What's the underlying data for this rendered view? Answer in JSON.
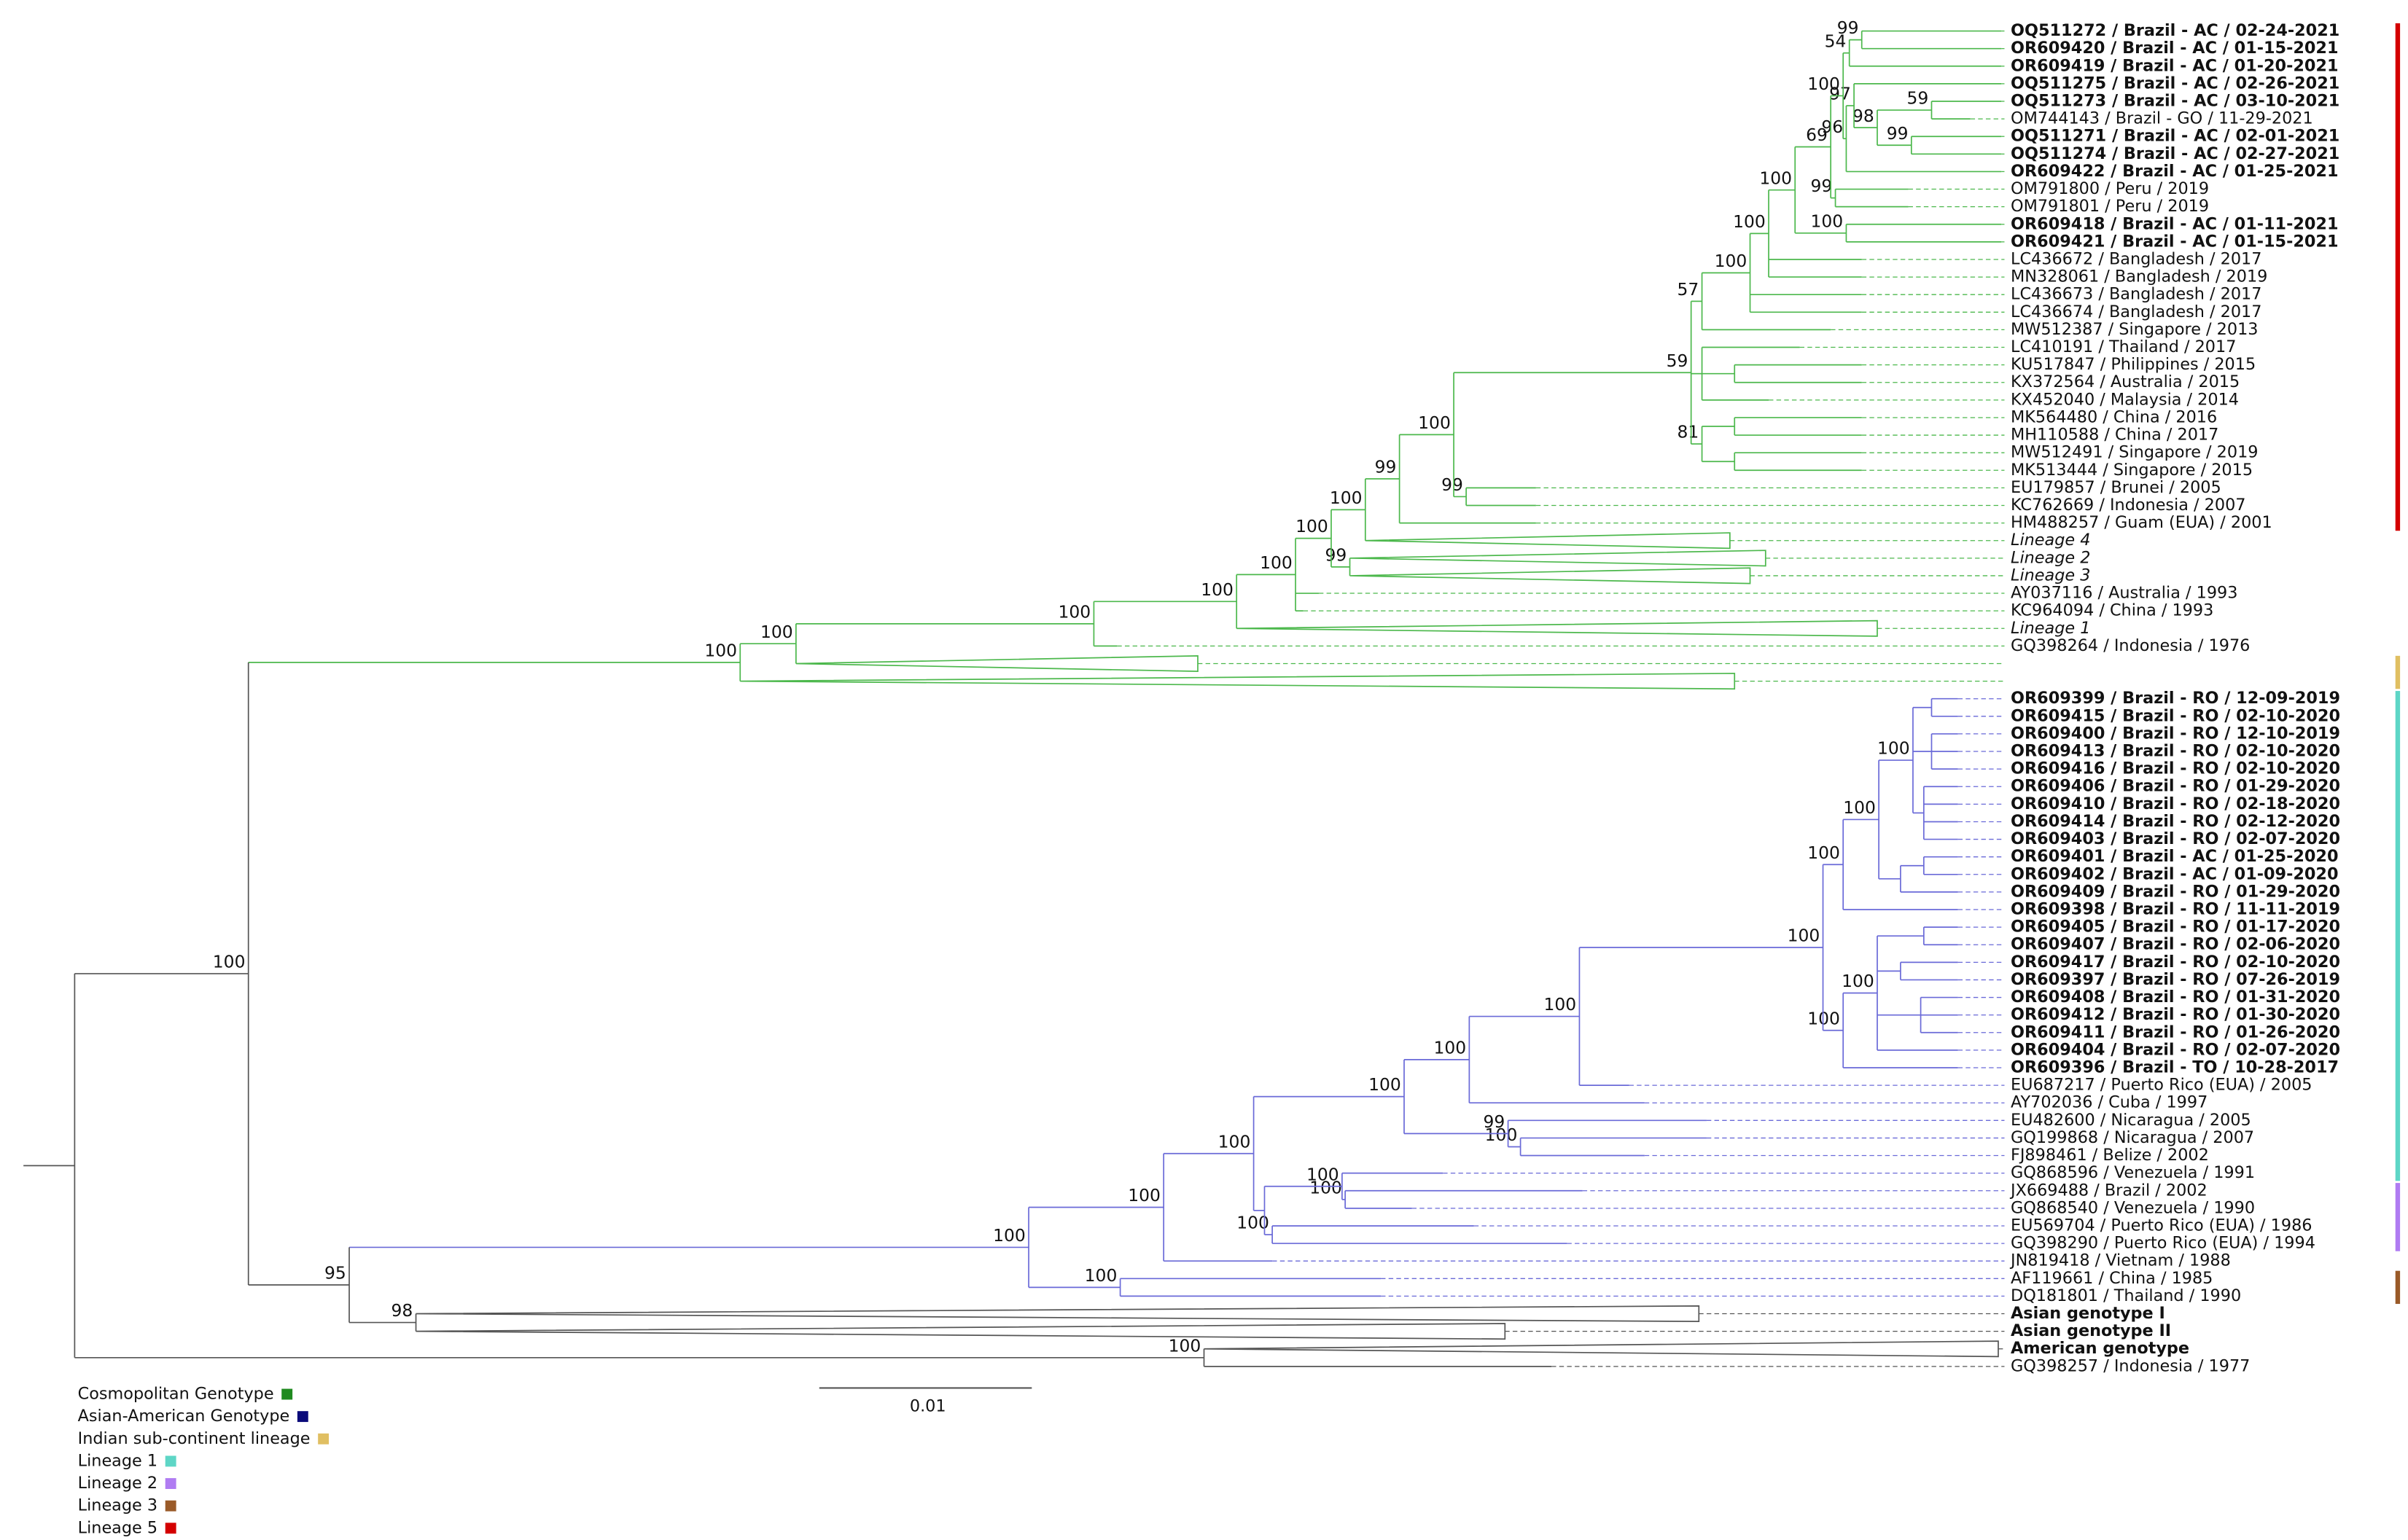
{
  "tips": [
    {
      "label": "OQ511272 / Brazil - AC / 02-24-2021",
      "style": "bold"
    },
    {
      "label": "OR609420 / Brazil - AC / 01-15-2021",
      "style": "bold"
    },
    {
      "label": "OR609419 / Brazil - AC / 01-20-2021",
      "style": "bold"
    },
    {
      "label": "OQ511275 / Brazil - AC / 02-26-2021",
      "style": "bold"
    },
    {
      "label": "OQ511273 / Brazil - AC / 03-10-2021",
      "style": "bold"
    },
    {
      "label": "OM744143 / Brazil - GO / 11-29-2021"
    },
    {
      "label": "OQ511271 / Brazil - AC / 02-01-2021",
      "style": "bold"
    },
    {
      "label": "OQ511274 / Brazil - AC / 02-27-2021",
      "style": "bold"
    },
    {
      "label": "OR609422 / Brazil - AC / 01-25-2021",
      "style": "bold"
    },
    {
      "label": "OM791800 / Peru / 2019"
    },
    {
      "label": "OM791801 / Peru / 2019"
    },
    {
      "label": "OR609418 / Brazil - AC / 01-11-2021",
      "style": "bold"
    },
    {
      "label": "OR609421 / Brazil - AC / 01-15-2021",
      "style": "bold"
    },
    {
      "label": "LC436672 / Bangladesh / 2017"
    },
    {
      "label": "MN328061 / Bangladesh / 2019"
    },
    {
      "label": "LC436673 / Bangladesh / 2017"
    },
    {
      "label": "LC436674 / Bangladesh / 2017"
    },
    {
      "label": "MW512387 / Singapore / 2013"
    },
    {
      "label": "LC410191 / Thailand / 2017"
    },
    {
      "label": "KU517847 / Philippines / 2015"
    },
    {
      "label": "KX372564 / Australia / 2015"
    },
    {
      "label": "KX452040 / Malaysia / 2014"
    },
    {
      "label": "MK564480 / China / 2016"
    },
    {
      "label": "MH110588 / China / 2017"
    },
    {
      "label": "MW512491 / Singapore / 2019"
    },
    {
      "label": "MK513444 / Singapore / 2015"
    },
    {
      "label": "EU179857 / Brunei / 2005"
    },
    {
      "label": "KC762669 / Indonesia / 2007"
    },
    {
      "label": "HM488257 / Guam (EUA) / 2001"
    },
    {
      "label": "Lineage 4",
      "style": "italic"
    },
    {
      "label": "Lineage 2",
      "style": "italic"
    },
    {
      "label": "Lineage 3",
      "style": "italic"
    },
    {
      "label": "AY037116 / Australia / 1993"
    },
    {
      "label": "KC964094 / China / 1993"
    },
    {
      "label": "Lineage 1",
      "style": "italic"
    },
    {
      "label": "GQ398264 / Indonesia / 1976"
    },
    null,
    null,
    {
      "label": "OR609399 / Brazil - RO / 12-09-2019",
      "style": "bold"
    },
    {
      "label": "OR609415 / Brazil - RO / 02-10-2020",
      "style": "bold"
    },
    {
      "label": "OR609400 / Brazil - RO / 12-10-2019",
      "style": "bold"
    },
    {
      "label": "OR609413 / Brazil - RO / 02-10-2020",
      "style": "bold"
    },
    {
      "label": "OR609416 / Brazil - RO / 02-10-2020",
      "style": "bold"
    },
    {
      "label": "OR609406 / Brazil - RO / 01-29-2020",
      "style": "bold"
    },
    {
      "label": "OR609410 / Brazil - RO / 02-18-2020",
      "style": "bold"
    },
    {
      "label": "OR609414 / Brazil - RO / 02-12-2020",
      "style": "bold"
    },
    {
      "label": "OR609403 / Brazil - RO / 02-07-2020",
      "style": "bold"
    },
    {
      "label": "OR609401 / Brazil - AC / 01-25-2020",
      "style": "bold"
    },
    {
      "label": "OR609402 / Brazil - AC / 01-09-2020",
      "style": "bold"
    },
    {
      "label": "OR609409 / Brazil - RO / 01-29-2020",
      "style": "bold"
    },
    {
      "label": "OR609398 / Brazil - RO / 11-11-2019",
      "style": "bold"
    },
    {
      "label": "OR609405 / Brazil - RO / 01-17-2020",
      "style": "bold"
    },
    {
      "label": "OR609407 / Brazil - RO / 02-06-2020",
      "style": "bold"
    },
    {
      "label": "OR609417 / Brazil - RO / 02-10-2020",
      "style": "bold"
    },
    {
      "label": "OR609397 / Brazil - RO / 07-26-2019",
      "style": "bold"
    },
    {
      "label": "OR609408 / Brazil - RO / 01-31-2020",
      "style": "bold"
    },
    {
      "label": "OR609412 / Brazil - RO / 01-30-2020",
      "style": "bold"
    },
    {
      "label": "OR609411 / Brazil - RO / 01-26-2020",
      "style": "bold"
    },
    {
      "label": "OR609404 / Brazil - RO / 02-07-2020",
      "style": "bold"
    },
    {
      "label": "OR609396 / Brazil - TO / 10-28-2017",
      "style": "bold"
    },
    {
      "label": "EU687217 / Puerto Rico (EUA) / 2005"
    },
    {
      "label": "AY702036 / Cuba / 1997"
    },
    {
      "label": "EU482600 / Nicaragua / 2005"
    },
    {
      "label": "GQ199868 / Nicaragua / 2007"
    },
    {
      "label": "FJ898461 / Belize / 2002"
    },
    {
      "label": "GQ868596 / Venezuela / 1991"
    },
    {
      "label": "JX669488 / Brazil / 2002"
    },
    {
      "label": "GQ868540 / Venezuela / 1990"
    },
    {
      "label": "EU569704 / Puerto Rico (EUA) / 1986"
    },
    {
      "label": "GQ398290 / Puerto Rico (EUA) / 1994"
    },
    {
      "label": "JN819418 / Vietnam / 1988"
    },
    {
      "label": "AF119661 / China / 1985"
    },
    {
      "label": "DQ181801 / Thailand / 1990"
    },
    {
      "label": "Asian genotype I",
      "style": "bold"
    },
    {
      "label": "Asian genotype II",
      "style": "bold"
    },
    {
      "label": "American genotype",
      "style": "bold"
    },
    {
      "label": "GQ398257 / Indonesia / 1977"
    }
  ],
  "supports": [
    100,
    100,
    100,
    100,
    100,
    100,
    100,
    100,
    99,
    100,
    59,
    57,
    100,
    100,
    100,
    69,
    100,
    54,
    99,
    96,
    97,
    98,
    59,
    99,
    99,
    100,
    81,
    99,
    99,
    95,
    100,
    100,
    100,
    100,
    100,
    100,
    100,
    100,
    100,
    100,
    100,
    100,
    99,
    100,
    100,
    100,
    100,
    100,
    98,
    100
  ],
  "scale_bar": {
    "label": 0.01
  },
  "legend": [
    {
      "label": "Cosmopolitan Genotype",
      "color": "#1f8a1f"
    },
    {
      "label": "Asian-American Genotype",
      "color": "#0a0a7a"
    },
    {
      "label": "Indian sub-continent lineage",
      "color": "#e0bf62"
    },
    {
      "label": "Lineage 1",
      "color": "#5ed6c6"
    },
    {
      "label": "Lineage 2",
      "color": "#b07cf2"
    },
    {
      "label": "Lineage 3",
      "color": "#9a5a28"
    },
    {
      "label": "Lineage 5",
      "color": "#d40000"
    }
  ]
}
